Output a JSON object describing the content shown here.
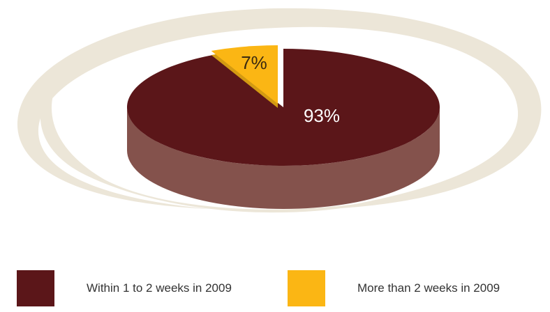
{
  "chart_data": {
    "type": "pie",
    "categories": [
      "Within 1 to 2 weeks in 2009",
      "More than 2 weeks in 2009"
    ],
    "values": [
      93,
      7
    ],
    "labels": [
      "93%",
      "7%"
    ],
    "colors": {
      "top": [
        "#5b1619",
        "#fbb614"
      ],
      "side": [
        "#84524c",
        "#d39a12"
      ],
      "label": [
        "#ffffff",
        "#3a2a10"
      ],
      "ring": "#ece6d8"
    },
    "legend_placement": "bottom"
  }
}
